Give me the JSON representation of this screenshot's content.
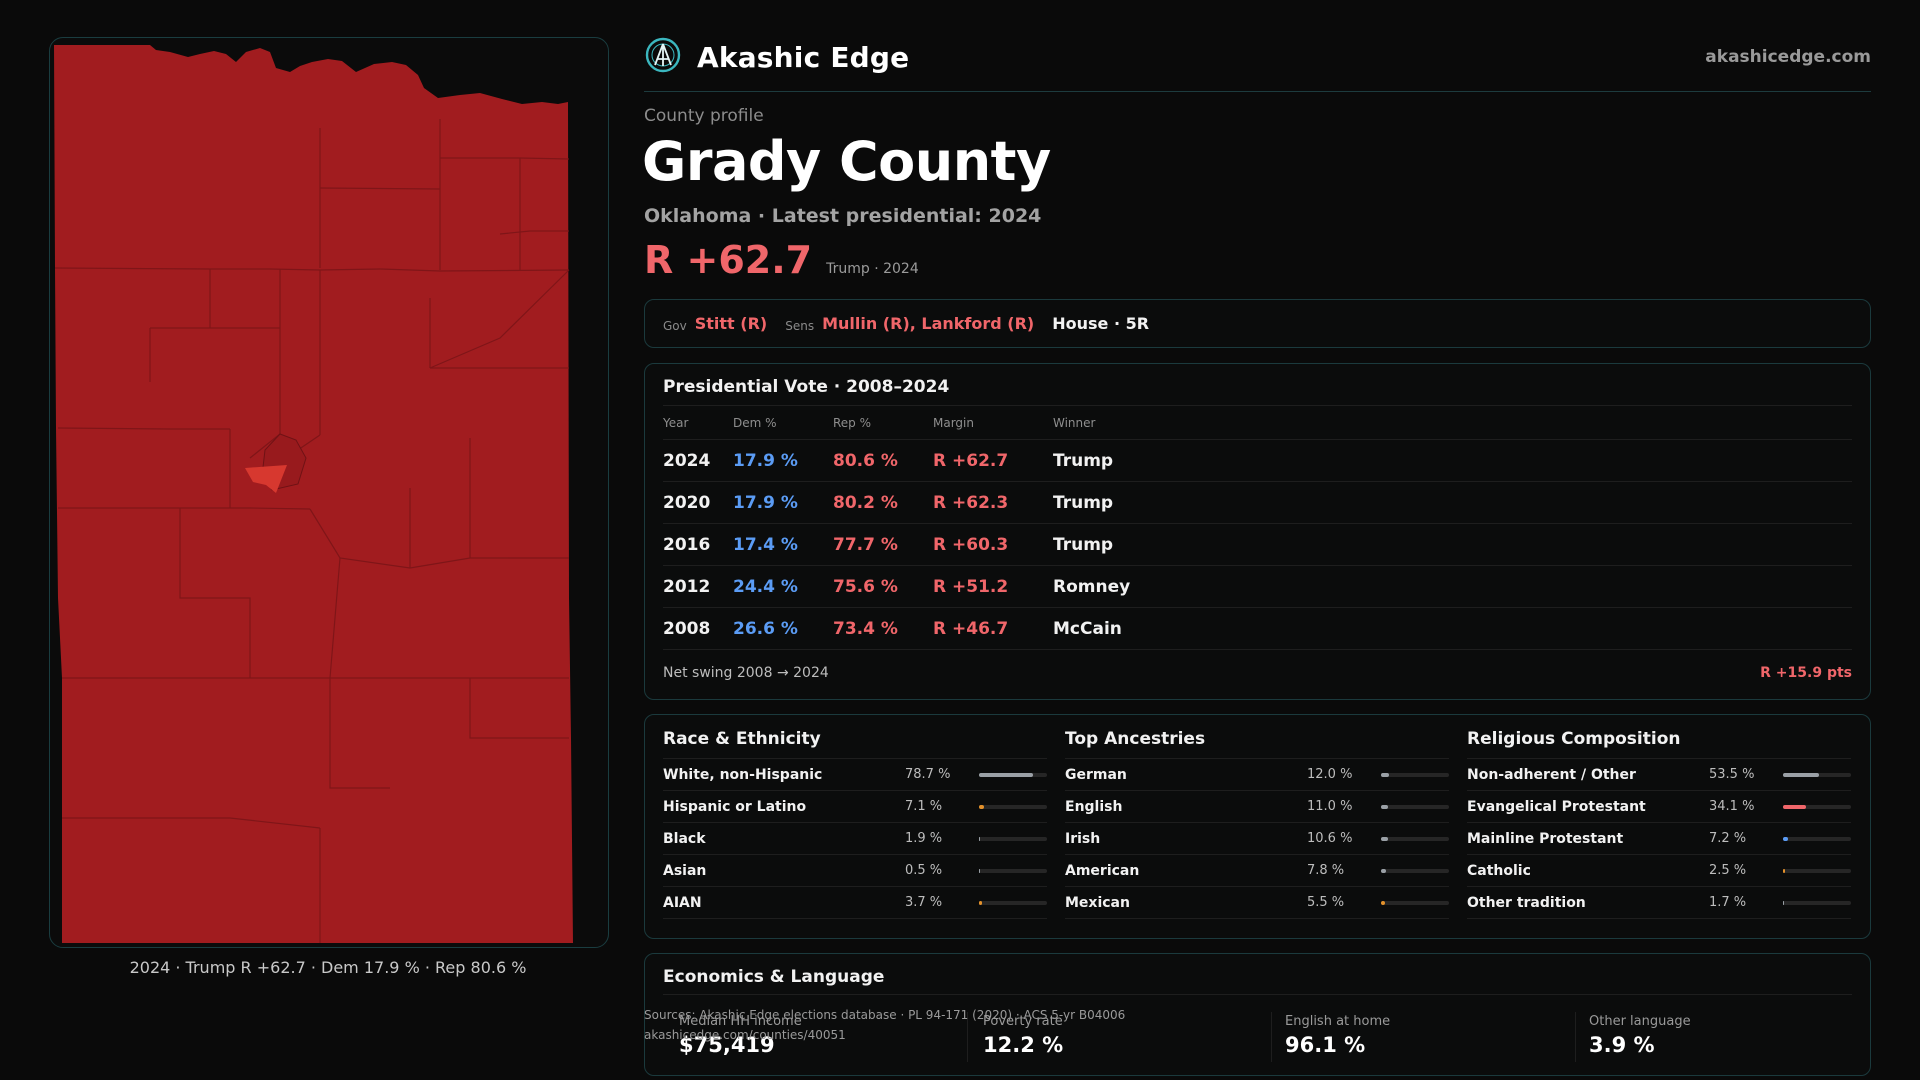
{
  "map": {
    "caption": "2024 · Trump R +62.7 · Dem 17.9 % · Rep 80.6 %",
    "fill_color": "#a11c1f",
    "accent_color": "#d7382f"
  },
  "header": {
    "brand": "Akashic Edge",
    "logo_icon": "akashic-edge-logo",
    "site_url": "akashicedge.com"
  },
  "county": {
    "kicker": "County profile",
    "name": "Grady County",
    "subtitle": "Oklahoma · Latest presidential: 2024",
    "margin": "R +62.7",
    "margin_sub": "Trump · 2024"
  },
  "officials": {
    "gov_label": "Gov",
    "gov": "Stitt (R)",
    "sens_label": "Sens",
    "sens": "Mullin (R), Lankford (R)",
    "house": "House · 5R"
  },
  "presidential": {
    "title": "Presidential Vote · 2008–2024",
    "headers": [
      "Year",
      "Dem %",
      "Rep %",
      "Margin",
      "Winner"
    ],
    "rows": [
      {
        "year": "2024",
        "dem": "17.9 %",
        "rep": "80.6 %",
        "margin": "R +62.7",
        "winner": "Trump"
      },
      {
        "year": "2020",
        "dem": "17.9 %",
        "rep": "80.2 %",
        "margin": "R +62.3",
        "winner": "Trump"
      },
      {
        "year": "2016",
        "dem": "17.4 %",
        "rep": "77.7 %",
        "margin": "R +60.3",
        "winner": "Trump"
      },
      {
        "year": "2012",
        "dem": "24.4 %",
        "rep": "75.6 %",
        "margin": "R +51.2",
        "winner": "Romney"
      },
      {
        "year": "2008",
        "dem": "26.6 %",
        "rep": "73.4 %",
        "margin": "R +46.7",
        "winner": "McCain"
      }
    ],
    "swing_label": "Net swing 2008 → 2024",
    "swing_value": "R +15.9 pts"
  },
  "demographics": [
    {
      "title": "Race & Ethnicity",
      "items": [
        {
          "name": "White, non-Hispanic",
          "pct": "78.7 %",
          "share": 0.787,
          "color": "#9aa0a6"
        },
        {
          "name": "Hispanic or Latino",
          "pct": "7.1 %",
          "share": 0.071,
          "color": "#e3912b"
        },
        {
          "name": "Black",
          "pct": "1.9 %",
          "share": 0.019,
          "color": "#9aa0a6"
        },
        {
          "name": "Asian",
          "pct": "0.5 %",
          "share": 0.005,
          "color": "#9aa0a6"
        },
        {
          "name": "AIAN",
          "pct": "3.7 %",
          "share": 0.037,
          "color": "#e3912b"
        }
      ]
    },
    {
      "title": "Top Ancestries",
      "items": [
        {
          "name": "German",
          "pct": "12.0 %",
          "share": 0.12,
          "color": "#9aa0a6"
        },
        {
          "name": "English",
          "pct": "11.0 %",
          "share": 0.11,
          "color": "#9aa0a6"
        },
        {
          "name": "Irish",
          "pct": "10.6 %",
          "share": 0.106,
          "color": "#9aa0a6"
        },
        {
          "name": "American",
          "pct": "7.8 %",
          "share": 0.078,
          "color": "#9aa0a6"
        },
        {
          "name": "Mexican",
          "pct": "5.5 %",
          "share": 0.055,
          "color": "#e3912b"
        }
      ]
    },
    {
      "title": "Religious Composition",
      "items": [
        {
          "name": "Non-adherent / Other",
          "pct": "53.5 %",
          "share": 0.535,
          "color": "#9aa0a6"
        },
        {
          "name": "Evangelical Protestant",
          "pct": "34.1 %",
          "share": 0.341,
          "color": "#f0666a"
        },
        {
          "name": "Mainline Protestant",
          "pct": "7.2 %",
          "share": 0.072,
          "color": "#5b9cf5"
        },
        {
          "name": "Catholic",
          "pct": "2.5 %",
          "share": 0.025,
          "color": "#e3912b"
        },
        {
          "name": "Other tradition",
          "pct": "1.7 %",
          "share": 0.017,
          "color": "#9aa0a6"
        }
      ]
    }
  ],
  "economics": {
    "title": "Economics & Language",
    "stats": [
      {
        "label": "Median HH income",
        "value": "$75,419"
      },
      {
        "label": "Poverty rate",
        "value": "12.2 %"
      },
      {
        "label": "English at home",
        "value": "96.1 %"
      },
      {
        "label": "Other language",
        "value": "3.9 %"
      }
    ]
  },
  "sources": {
    "line1": "Sources: Akashic Edge elections database · PL 94-171 (2020) · ACS 5-yr B04006",
    "line2": "akashicedge.com/counties/40051"
  }
}
